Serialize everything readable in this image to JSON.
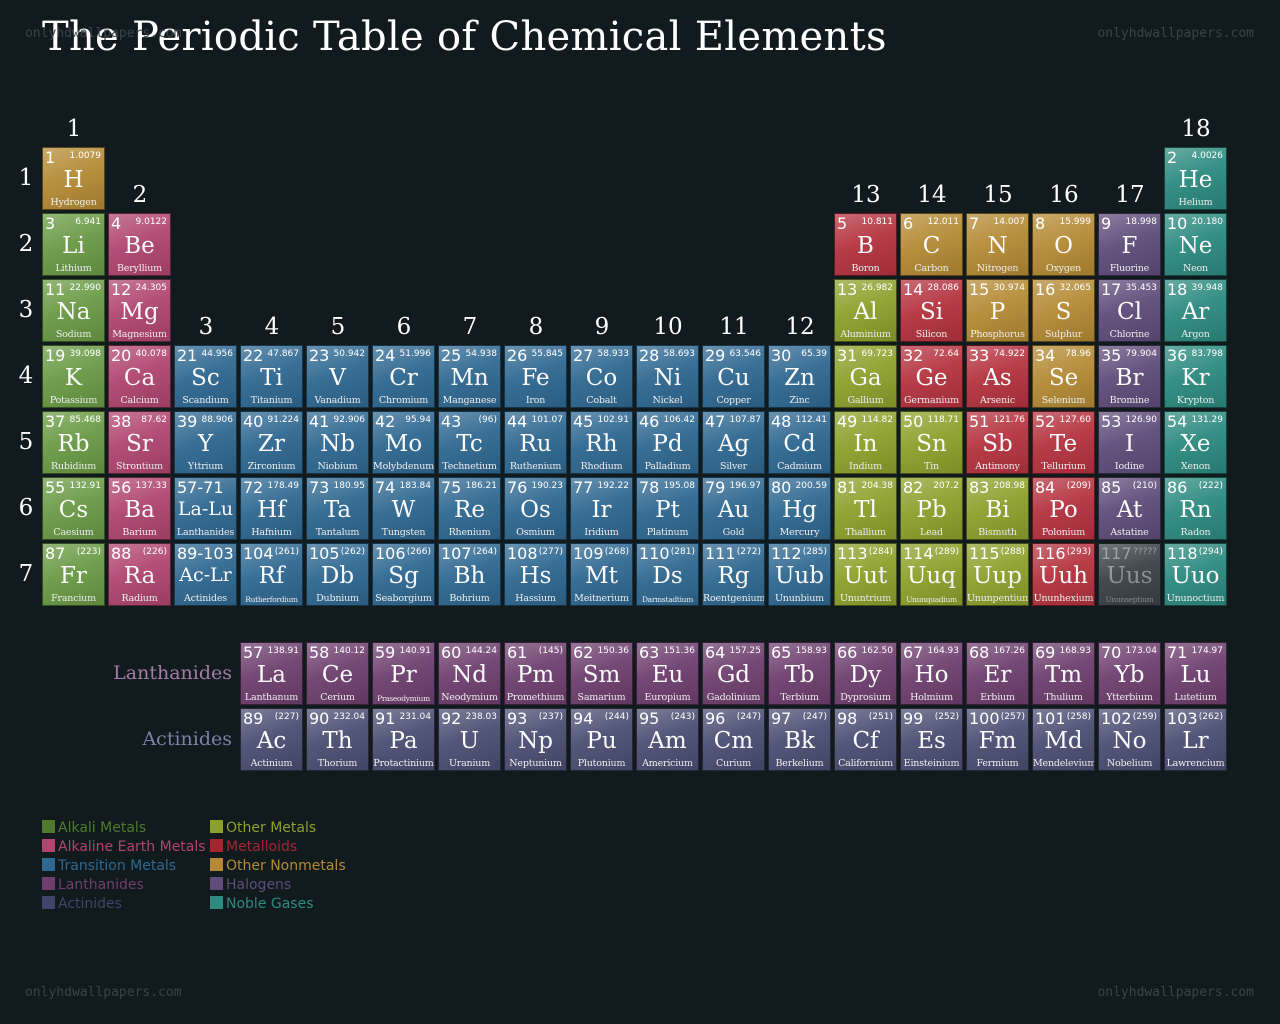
{
  "title": "The Periodic Table of Chemical Elements",
  "watermark": "onlyhdwallpapers.com",
  "groups": [
    "1",
    "2",
    "3",
    "4",
    "5",
    "6",
    "7",
    "8",
    "9",
    "10",
    "11",
    "12",
    "13",
    "14",
    "15",
    "16",
    "17",
    "18"
  ],
  "periods": [
    "1",
    "2",
    "3",
    "4",
    "5",
    "6",
    "7"
  ],
  "series_labels": {
    "lanthanides": "Lanthanides",
    "actinides": "Actinides"
  },
  "category_colors": {
    "alkali": "#6a9a45",
    "alkaline": "#b0456f",
    "transition": "#2f6891",
    "other-metal": "#8ea02c",
    "metalloid": "#b4333f",
    "nonmetal": "#b48a34",
    "halogen": "#5f4c7a",
    "noble": "#2c8a80",
    "lanth": "#6e3f6e",
    "actin": "#4a4e72",
    "unknown": "#3a4246"
  },
  "legend": [
    {
      "label": "Alkali Metals",
      "color": "#4f7a2e"
    },
    {
      "label": "Alkaline Earth Metals",
      "color": "#b0456f"
    },
    {
      "label": "Transition Metals",
      "color": "#2f6891"
    },
    {
      "label": "Lanthanides",
      "color": "#6e3f6e"
    },
    {
      "label": "Actinides",
      "color": "#3f4468"
    },
    {
      "label": "Other Metals",
      "color": "#8ea02c"
    },
    {
      "label": "Metalloids",
      "color": "#a3262f"
    },
    {
      "label": "Other Nonmetals",
      "color": "#b48a34"
    },
    {
      "label": "Halogens",
      "color": "#5f4c7a"
    },
    {
      "label": "Noble Gases",
      "color": "#2c8a80"
    }
  ],
  "elements": [
    {
      "n": "1",
      "s": "H",
      "name": "Hydrogen",
      "m": "1.0079",
      "cat": "nonmetal",
      "p": 1,
      "g": 1
    },
    {
      "n": "2",
      "s": "He",
      "name": "Helium",
      "m": "4.0026",
      "cat": "noble",
      "p": 1,
      "g": 18
    },
    {
      "n": "3",
      "s": "Li",
      "name": "Lithium",
      "m": "6.941",
      "cat": "alkali",
      "p": 2,
      "g": 1
    },
    {
      "n": "4",
      "s": "Be",
      "name": "Beryllium",
      "m": "9.0122",
      "cat": "alkaline",
      "p": 2,
      "g": 2
    },
    {
      "n": "5",
      "s": "B",
      "name": "Boron",
      "m": "10.811",
      "cat": "metalloid",
      "p": 2,
      "g": 13
    },
    {
      "n": "6",
      "s": "C",
      "name": "Carbon",
      "m": "12.011",
      "cat": "nonmetal",
      "p": 2,
      "g": 14
    },
    {
      "n": "7",
      "s": "N",
      "name": "Nitrogen",
      "m": "14.007",
      "cat": "nonmetal",
      "p": 2,
      "g": 15
    },
    {
      "n": "8",
      "s": "O",
      "name": "Oxygen",
      "m": "15.999",
      "cat": "nonmetal",
      "p": 2,
      "g": 16
    },
    {
      "n": "9",
      "s": "F",
      "name": "Fluorine",
      "m": "18.998",
      "cat": "halogen",
      "p": 2,
      "g": 17
    },
    {
      "n": "10",
      "s": "Ne",
      "name": "Neon",
      "m": "20.180",
      "cat": "noble",
      "p": 2,
      "g": 18
    },
    {
      "n": "11",
      "s": "Na",
      "name": "Sodium",
      "m": "22.990",
      "cat": "alkali",
      "p": 3,
      "g": 1
    },
    {
      "n": "12",
      "s": "Mg",
      "name": "Magnesium",
      "m": "24.305",
      "cat": "alkaline",
      "p": 3,
      "g": 2
    },
    {
      "n": "13",
      "s": "Al",
      "name": "Aluminium",
      "m": "26.982",
      "cat": "other-metal",
      "p": 3,
      "g": 13
    },
    {
      "n": "14",
      "s": "Si",
      "name": "Silicon",
      "m": "28.086",
      "cat": "metalloid",
      "p": 3,
      "g": 14
    },
    {
      "n": "15",
      "s": "P",
      "name": "Phosphorus",
      "m": "30.974",
      "cat": "nonmetal",
      "p": 3,
      "g": 15
    },
    {
      "n": "16",
      "s": "S",
      "name": "Sulphur",
      "m": "32.065",
      "cat": "nonmetal",
      "p": 3,
      "g": 16
    },
    {
      "n": "17",
      "s": "Cl",
      "name": "Chlorine",
      "m": "35.453",
      "cat": "halogen",
      "p": 3,
      "g": 17
    },
    {
      "n": "18",
      "s": "Ar",
      "name": "Argon",
      "m": "39.948",
      "cat": "noble",
      "p": 3,
      "g": 18
    },
    {
      "n": "19",
      "s": "K",
      "name": "Potassium",
      "m": "39.098",
      "cat": "alkali",
      "p": 4,
      "g": 1
    },
    {
      "n": "20",
      "s": "Ca",
      "name": "Calcium",
      "m": "40.078",
      "cat": "alkaline",
      "p": 4,
      "g": 2
    },
    {
      "n": "21",
      "s": "Sc",
      "name": "Scandium",
      "m": "44.956",
      "cat": "transition",
      "p": 4,
      "g": 3
    },
    {
      "n": "22",
      "s": "Ti",
      "name": "Titanium",
      "m": "47.867",
      "cat": "transition",
      "p": 4,
      "g": 4
    },
    {
      "n": "23",
      "s": "V",
      "name": "Vanadium",
      "m": "50.942",
      "cat": "transition",
      "p": 4,
      "g": 5
    },
    {
      "n": "24",
      "s": "Cr",
      "name": "Chromium",
      "m": "51.996",
      "cat": "transition",
      "p": 4,
      "g": 6
    },
    {
      "n": "25",
      "s": "Mn",
      "name": "Manganese",
      "m": "54.938",
      "cat": "transition",
      "p": 4,
      "g": 7
    },
    {
      "n": "26",
      "s": "Fe",
      "name": "Iron",
      "m": "55.845",
      "cat": "transition",
      "p": 4,
      "g": 8
    },
    {
      "n": "27",
      "s": "Co",
      "name": "Cobalt",
      "m": "58.933",
      "cat": "transition",
      "p": 4,
      "g": 9
    },
    {
      "n": "28",
      "s": "Ni",
      "name": "Nickel",
      "m": "58.693",
      "cat": "transition",
      "p": 4,
      "g": 10
    },
    {
      "n": "29",
      "s": "Cu",
      "name": "Copper",
      "m": "63.546",
      "cat": "transition",
      "p": 4,
      "g": 11
    },
    {
      "n": "30",
      "s": "Zn",
      "name": "Zinc",
      "m": "65.39",
      "cat": "transition",
      "p": 4,
      "g": 12
    },
    {
      "n": "31",
      "s": "Ga",
      "name": "Gallium",
      "m": "69.723",
      "cat": "other-metal",
      "p": 4,
      "g": 13
    },
    {
      "n": "32",
      "s": "Ge",
      "name": "Germanium",
      "m": "72.64",
      "cat": "metalloid",
      "p": 4,
      "g": 14
    },
    {
      "n": "33",
      "s": "As",
      "name": "Arsenic",
      "m": "74.922",
      "cat": "metalloid",
      "p": 4,
      "g": 15
    },
    {
      "n": "34",
      "s": "Se",
      "name": "Selenium",
      "m": "78.96",
      "cat": "nonmetal",
      "p": 4,
      "g": 16
    },
    {
      "n": "35",
      "s": "Br",
      "name": "Bromine",
      "m": "79.904",
      "cat": "halogen",
      "p": 4,
      "g": 17
    },
    {
      "n": "36",
      "s": "Kr",
      "name": "Krypton",
      "m": "83.798",
      "cat": "noble",
      "p": 4,
      "g": 18
    },
    {
      "n": "37",
      "s": "Rb",
      "name": "Rubidium",
      "m": "85.468",
      "cat": "alkali",
      "p": 5,
      "g": 1
    },
    {
      "n": "38",
      "s": "Sr",
      "name": "Strontium",
      "m": "87.62",
      "cat": "alkaline",
      "p": 5,
      "g": 2
    },
    {
      "n": "39",
      "s": "Y",
      "name": "Yttrium",
      "m": "88.906",
      "cat": "transition",
      "p": 5,
      "g": 3
    },
    {
      "n": "40",
      "s": "Zr",
      "name": "Zirconium",
      "m": "91.224",
      "cat": "transition",
      "p": 5,
      "g": 4
    },
    {
      "n": "41",
      "s": "Nb",
      "name": "Niobium",
      "m": "92.906",
      "cat": "transition",
      "p": 5,
      "g": 5
    },
    {
      "n": "42",
      "s": "Mo",
      "name": "Molybdenum",
      "m": "95.94",
      "cat": "transition",
      "p": 5,
      "g": 6
    },
    {
      "n": "43",
      "s": "Tc",
      "name": "Technetium",
      "m": "(96)",
      "cat": "transition",
      "p": 5,
      "g": 7
    },
    {
      "n": "44",
      "s": "Ru",
      "name": "Ruthenium",
      "m": "101.07",
      "cat": "transition",
      "p": 5,
      "g": 8
    },
    {
      "n": "45",
      "s": "Rh",
      "name": "Rhodium",
      "m": "102.91",
      "cat": "transition",
      "p": 5,
      "g": 9
    },
    {
      "n": "46",
      "s": "Pd",
      "name": "Palladium",
      "m": "106.42",
      "cat": "transition",
      "p": 5,
      "g": 10
    },
    {
      "n": "47",
      "s": "Ag",
      "name": "Silver",
      "m": "107.87",
      "cat": "transition",
      "p": 5,
      "g": 11
    },
    {
      "n": "48",
      "s": "Cd",
      "name": "Cadmium",
      "m": "112.41",
      "cat": "transition",
      "p": 5,
      "g": 12
    },
    {
      "n": "49",
      "s": "In",
      "name": "Indium",
      "m": "114.82",
      "cat": "other-metal",
      "p": 5,
      "g": 13
    },
    {
      "n": "50",
      "s": "Sn",
      "name": "Tin",
      "m": "118.71",
      "cat": "other-metal",
      "p": 5,
      "g": 14
    },
    {
      "n": "51",
      "s": "Sb",
      "name": "Antimony",
      "m": "121.76",
      "cat": "metalloid",
      "p": 5,
      "g": 15
    },
    {
      "n": "52",
      "s": "Te",
      "name": "Tellurium",
      "m": "127.60",
      "cat": "metalloid",
      "p": 5,
      "g": 16
    },
    {
      "n": "53",
      "s": "I",
      "name": "Iodine",
      "m": "126.90",
      "cat": "halogen",
      "p": 5,
      "g": 17
    },
    {
      "n": "54",
      "s": "Xe",
      "name": "Xenon",
      "m": "131.29",
      "cat": "noble",
      "p": 5,
      "g": 18
    },
    {
      "n": "55",
      "s": "Cs",
      "name": "Caesium",
      "m": "132.91",
      "cat": "alkali",
      "p": 6,
      "g": 1
    },
    {
      "n": "56",
      "s": "Ba",
      "name": "Barium",
      "m": "137.33",
      "cat": "alkaline",
      "p": 6,
      "g": 2
    },
    {
      "n": "57-71",
      "s": "La-Lu",
      "name": "Lanthanides",
      "m": "",
      "cat": "transition",
      "p": 6,
      "g": 3,
      "special": true
    },
    {
      "n": "72",
      "s": "Hf",
      "name": "Hafnium",
      "m": "178.49",
      "cat": "transition",
      "p": 6,
      "g": 4
    },
    {
      "n": "73",
      "s": "Ta",
      "name": "Tantalum",
      "m": "180.95",
      "cat": "transition",
      "p": 6,
      "g": 5
    },
    {
      "n": "74",
      "s": "W",
      "name": "Tungsten",
      "m": "183.84",
      "cat": "transition",
      "p": 6,
      "g": 6
    },
    {
      "n": "75",
      "s": "Re",
      "name": "Rhenium",
      "m": "186.21",
      "cat": "transition",
      "p": 6,
      "g": 7
    },
    {
      "n": "76",
      "s": "Os",
      "name": "Osmium",
      "m": "190.23",
      "cat": "transition",
      "p": 6,
      "g": 8
    },
    {
      "n": "77",
      "s": "Ir",
      "name": "Iridium",
      "m": "192.22",
      "cat": "transition",
      "p": 6,
      "g": 9
    },
    {
      "n": "78",
      "s": "Pt",
      "name": "Platinum",
      "m": "195.08",
      "cat": "transition",
      "p": 6,
      "g": 10
    },
    {
      "n": "79",
      "s": "Au",
      "name": "Gold",
      "m": "196.97",
      "cat": "transition",
      "p": 6,
      "g": 11
    },
    {
      "n": "80",
      "s": "Hg",
      "name": "Mercury",
      "m": "200.59",
      "cat": "transition",
      "p": 6,
      "g": 12
    },
    {
      "n": "81",
      "s": "Tl",
      "name": "Thallium",
      "m": "204.38",
      "cat": "other-metal",
      "p": 6,
      "g": 13
    },
    {
      "n": "82",
      "s": "Pb",
      "name": "Lead",
      "m": "207.2",
      "cat": "other-metal",
      "p": 6,
      "g": 14
    },
    {
      "n": "83",
      "s": "Bi",
      "name": "Bismuth",
      "m": "208.98",
      "cat": "other-metal",
      "p": 6,
      "g": 15
    },
    {
      "n": "84",
      "s": "Po",
      "name": "Polonium",
      "m": "(209)",
      "cat": "metalloid",
      "p": 6,
      "g": 16
    },
    {
      "n": "85",
      "s": "At",
      "name": "Astatine",
      "m": "(210)",
      "cat": "halogen",
      "p": 6,
      "g": 17
    },
    {
      "n": "86",
      "s": "Rn",
      "name": "Radon",
      "m": "(222)",
      "cat": "noble",
      "p": 6,
      "g": 18
    },
    {
      "n": "87",
      "s": "Fr",
      "name": "Francium",
      "m": "(223)",
      "cat": "alkali",
      "p": 7,
      "g": 1
    },
    {
      "n": "88",
      "s": "Ra",
      "name": "Radium",
      "m": "(226)",
      "cat": "alkaline",
      "p": 7,
      "g": 2
    },
    {
      "n": "89-103",
      "s": "Ac-Lr",
      "name": "Actinides",
      "m": "",
      "cat": "transition",
      "p": 7,
      "g": 3,
      "special": true
    },
    {
      "n": "104",
      "s": "Rf",
      "name": "Rutherfordium",
      "m": "(261)",
      "cat": "transition",
      "p": 7,
      "g": 4,
      "small": true
    },
    {
      "n": "105",
      "s": "Db",
      "name": "Dubnium",
      "m": "(262)",
      "cat": "transition",
      "p": 7,
      "g": 5
    },
    {
      "n": "106",
      "s": "Sg",
      "name": "Seaborgium",
      "m": "(266)",
      "cat": "transition",
      "p": 7,
      "g": 6
    },
    {
      "n": "107",
      "s": "Bh",
      "name": "Bohrium",
      "m": "(264)",
      "cat": "transition",
      "p": 7,
      "g": 7
    },
    {
      "n": "108",
      "s": "Hs",
      "name": "Hassium",
      "m": "(277)",
      "cat": "transition",
      "p": 7,
      "g": 8
    },
    {
      "n": "109",
      "s": "Mt",
      "name": "Meitnerium",
      "m": "(268)",
      "cat": "transition",
      "p": 7,
      "g": 9
    },
    {
      "n": "110",
      "s": "Ds",
      "name": "Darmstadtium",
      "m": "(281)",
      "cat": "transition",
      "p": 7,
      "g": 10,
      "small": true
    },
    {
      "n": "111",
      "s": "Rg",
      "name": "Roentgenium",
      "m": "(272)",
      "cat": "transition",
      "p": 7,
      "g": 11
    },
    {
      "n": "112",
      "s": "Uub",
      "name": "Ununbium",
      "m": "(285)",
      "cat": "transition",
      "p": 7,
      "g": 12
    },
    {
      "n": "113",
      "s": "Uut",
      "name": "Ununtrium",
      "m": "(284)",
      "cat": "other-metal",
      "p": 7,
      "g": 13
    },
    {
      "n": "114",
      "s": "Uuq",
      "name": "Ununquadium",
      "m": "(289)",
      "cat": "other-metal",
      "p": 7,
      "g": 14,
      "small": true
    },
    {
      "n": "115",
      "s": "Uup",
      "name": "Ununpentium",
      "m": "(288)",
      "cat": "other-metal",
      "p": 7,
      "g": 15
    },
    {
      "n": "116",
      "s": "Uuh",
      "name": "Ununhexium",
      "m": "(293)",
      "cat": "metalloid",
      "p": 7,
      "g": 16
    },
    {
      "n": "117",
      "s": "Uus",
      "name": "Ununseptium",
      "m": "?????",
      "cat": "unknown",
      "p": 7,
      "g": 17,
      "faded": true,
      "small": true
    },
    {
      "n": "118",
      "s": "Uuo",
      "name": "Ununoctium",
      "m": "(294)",
      "cat": "noble",
      "p": 7,
      "g": 18
    }
  ],
  "lanthanides": [
    {
      "n": "57",
      "s": "La",
      "name": "Lanthanum",
      "m": "138.91"
    },
    {
      "n": "58",
      "s": "Ce",
      "name": "Cerium",
      "m": "140.12"
    },
    {
      "n": "59",
      "s": "Pr",
      "name": "Praseodymium",
      "m": "140.91",
      "small": true
    },
    {
      "n": "60",
      "s": "Nd",
      "name": "Neodymium",
      "m": "144.24"
    },
    {
      "n": "61",
      "s": "Pm",
      "name": "Promethium",
      "m": "(145)"
    },
    {
      "n": "62",
      "s": "Sm",
      "name": "Samarium",
      "m": "150.36"
    },
    {
      "n": "63",
      "s": "Eu",
      "name": "Europium",
      "m": "151.36"
    },
    {
      "n": "64",
      "s": "Gd",
      "name": "Gadolinium",
      "m": "157.25"
    },
    {
      "n": "65",
      "s": "Tb",
      "name": "Terbium",
      "m": "158.93"
    },
    {
      "n": "66",
      "s": "Dy",
      "name": "Dyprosium",
      "m": "162.50"
    },
    {
      "n": "67",
      "s": "Ho",
      "name": "Holmium",
      "m": "164.93"
    },
    {
      "n": "68",
      "s": "Er",
      "name": "Erbium",
      "m": "167.26"
    },
    {
      "n": "69",
      "s": "Tm",
      "name": "Thulium",
      "m": "168.93"
    },
    {
      "n": "70",
      "s": "Yb",
      "name": "Ytterbium",
      "m": "173.04"
    },
    {
      "n": "71",
      "s": "Lu",
      "name": "Lutetium",
      "m": "174.97"
    }
  ],
  "actinides": [
    {
      "n": "89",
      "s": "Ac",
      "name": "Actinium",
      "m": "(227)"
    },
    {
      "n": "90",
      "s": "Th",
      "name": "Thorium",
      "m": "232.04"
    },
    {
      "n": "91",
      "s": "Pa",
      "name": "Protactinium",
      "m": "231.04"
    },
    {
      "n": "92",
      "s": "U",
      "name": "Uranium",
      "m": "238.03"
    },
    {
      "n": "93",
      "s": "Np",
      "name": "Neptunium",
      "m": "(237)"
    },
    {
      "n": "94",
      "s": "Pu",
      "name": "Plutonium",
      "m": "(244)"
    },
    {
      "n": "95",
      "s": "Am",
      "name": "Americium",
      "m": "(243)"
    },
    {
      "n": "96",
      "s": "Cm",
      "name": "Curium",
      "m": "(247)"
    },
    {
      "n": "97",
      "s": "Bk",
      "name": "Berkelium",
      "m": "(247)"
    },
    {
      "n": "98",
      "s": "Cf",
      "name": "Californium",
      "m": "(251)"
    },
    {
      "n": "99",
      "s": "Es",
      "name": "Einsteinium",
      "m": "(252)"
    },
    {
      "n": "100",
      "s": "Fm",
      "name": "Fermium",
      "m": "(257)"
    },
    {
      "n": "101",
      "s": "Md",
      "name": "Mendelevium",
      "m": "(258)"
    },
    {
      "n": "102",
      "s": "No",
      "name": "Nobelium",
      "m": "(259)"
    },
    {
      "n": "103",
      "s": "Lr",
      "name": "Lawrencium",
      "m": "(262)"
    }
  ]
}
